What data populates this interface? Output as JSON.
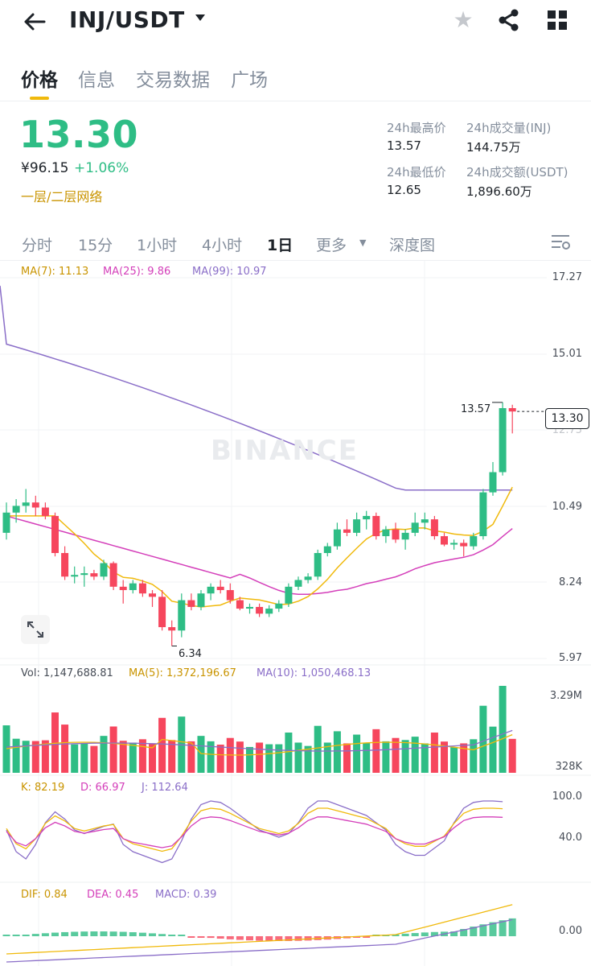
{
  "header": {
    "pair": "INJ/USDT",
    "icons": [
      "back-arrow-icon",
      "caret-down-icon",
      "star-icon",
      "share-icon",
      "grid-icon"
    ]
  },
  "tabs": [
    "价格",
    "信息",
    "交易数据",
    "广场"
  ],
  "ticker": {
    "last_price": "13.30",
    "cny_price": "¥96.15",
    "change": "+1.06%",
    "tag": "一层/二层网络",
    "stats": {
      "high_label": "24h最高价",
      "high": "13.57",
      "vol_base_label": "24h成交量(INJ)",
      "vol_base": "144.75万",
      "low_label": "24h最低价",
      "low": "12.65",
      "vol_quote_label": "24h成交额(USDT)",
      "vol_quote": "1,896.60万"
    }
  },
  "intervals": [
    "分时",
    "15分",
    "1小时",
    "4小时",
    "1日",
    "更多",
    "深度图"
  ],
  "active_interval": "1日",
  "colors": {
    "up": "#2ebd85",
    "down": "#f6465d",
    "accent": "#f0b90b",
    "ma7": "#f0b90b",
    "ma25": "#d43fba",
    "ma99": "#8a6ec8"
  },
  "chart_data": {
    "type": "candlestick",
    "price_axis": [
      "17.27",
      "15.01",
      "12.75",
      "10.49",
      "8.24",
      "5.97"
    ],
    "ma": {
      "ma7": "MA(7): 11.13",
      "ma25": "MA(25): 9.86",
      "ma99": "MA(99): 10.97"
    },
    "high_marker": "13.57",
    "low_marker": "6.34",
    "current_price": "13.30",
    "watermark": "BINANCE",
    "candles": [
      {
        "o": 9.7,
        "h": 10.6,
        "l": 9.5,
        "c": 10.3
      },
      {
        "o": 10.3,
        "h": 10.7,
        "l": 10.0,
        "c": 10.5
      },
      {
        "o": 10.5,
        "h": 11.0,
        "l": 10.3,
        "c": 10.6
      },
      {
        "o": 10.6,
        "h": 10.8,
        "l": 10.2,
        "c": 10.45
      },
      {
        "o": 10.45,
        "h": 10.6,
        "l": 10.1,
        "c": 10.2
      },
      {
        "o": 10.2,
        "h": 10.3,
        "l": 9.0,
        "c": 9.1
      },
      {
        "o": 9.1,
        "h": 9.3,
        "l": 8.3,
        "c": 8.4
      },
      {
        "o": 8.4,
        "h": 8.7,
        "l": 8.2,
        "c": 8.45
      },
      {
        "o": 8.45,
        "h": 8.7,
        "l": 8.1,
        "c": 8.5
      },
      {
        "o": 8.5,
        "h": 8.6,
        "l": 8.3,
        "c": 8.4
      },
      {
        "o": 8.4,
        "h": 8.9,
        "l": 8.3,
        "c": 8.8
      },
      {
        "o": 8.8,
        "h": 8.85,
        "l": 8.0,
        "c": 8.1
      },
      {
        "o": 8.1,
        "h": 8.3,
        "l": 7.6,
        "c": 8.0
      },
      {
        "o": 8.0,
        "h": 8.3,
        "l": 7.9,
        "c": 8.2
      },
      {
        "o": 8.2,
        "h": 8.3,
        "l": 7.8,
        "c": 7.9
      },
      {
        "o": 7.9,
        "h": 8.0,
        "l": 7.5,
        "c": 7.8
      },
      {
        "o": 7.8,
        "h": 8.0,
        "l": 6.8,
        "c": 6.9
      },
      {
        "o": 6.9,
        "h": 7.1,
        "l": 6.34,
        "c": 6.8
      },
      {
        "o": 6.8,
        "h": 7.9,
        "l": 6.6,
        "c": 7.7
      },
      {
        "o": 7.7,
        "h": 7.9,
        "l": 7.4,
        "c": 7.5
      },
      {
        "o": 7.5,
        "h": 8.0,
        "l": 7.4,
        "c": 7.9
      },
      {
        "o": 7.9,
        "h": 8.2,
        "l": 7.7,
        "c": 8.1
      },
      {
        "o": 8.1,
        "h": 8.3,
        "l": 7.9,
        "c": 8.0
      },
      {
        "o": 8.0,
        "h": 8.2,
        "l": 7.6,
        "c": 7.7
      },
      {
        "o": 7.7,
        "h": 7.8,
        "l": 7.4,
        "c": 7.45
      },
      {
        "o": 7.45,
        "h": 7.6,
        "l": 7.3,
        "c": 7.5
      },
      {
        "o": 7.5,
        "h": 7.6,
        "l": 7.2,
        "c": 7.3
      },
      {
        "o": 7.3,
        "h": 7.55,
        "l": 7.2,
        "c": 7.45
      },
      {
        "o": 7.45,
        "h": 7.7,
        "l": 7.35,
        "c": 7.6
      },
      {
        "o": 7.6,
        "h": 8.2,
        "l": 7.5,
        "c": 8.1
      },
      {
        "o": 8.1,
        "h": 8.4,
        "l": 8.0,
        "c": 8.3
      },
      {
        "o": 8.3,
        "h": 8.5,
        "l": 8.2,
        "c": 8.4
      },
      {
        "o": 8.4,
        "h": 9.2,
        "l": 8.3,
        "c": 9.1
      },
      {
        "o": 9.1,
        "h": 9.4,
        "l": 9.0,
        "c": 9.3
      },
      {
        "o": 9.3,
        "h": 10.0,
        "l": 9.2,
        "c": 9.8
      },
      {
        "o": 9.8,
        "h": 10.1,
        "l": 9.6,
        "c": 9.7
      },
      {
        "o": 9.7,
        "h": 10.3,
        "l": 9.6,
        "c": 10.1
      },
      {
        "o": 10.1,
        "h": 10.35,
        "l": 9.8,
        "c": 10.2
      },
      {
        "o": 10.2,
        "h": 10.3,
        "l": 9.5,
        "c": 9.6
      },
      {
        "o": 9.6,
        "h": 9.9,
        "l": 9.4,
        "c": 9.8
      },
      {
        "o": 9.8,
        "h": 10.0,
        "l": 9.4,
        "c": 9.5
      },
      {
        "o": 9.5,
        "h": 9.8,
        "l": 9.2,
        "c": 9.7
      },
      {
        "o": 9.7,
        "h": 10.3,
        "l": 9.6,
        "c": 10.0
      },
      {
        "o": 10.0,
        "h": 10.3,
        "l": 9.8,
        "c": 10.1
      },
      {
        "o": 10.1,
        "h": 10.2,
        "l": 9.5,
        "c": 9.6
      },
      {
        "o": 9.6,
        "h": 9.7,
        "l": 9.3,
        "c": 9.35
      },
      {
        "o": 9.35,
        "h": 9.5,
        "l": 9.2,
        "c": 9.4
      },
      {
        "o": 9.4,
        "h": 9.5,
        "l": 9.0,
        "c": 9.3
      },
      {
        "o": 9.3,
        "h": 9.7,
        "l": 9.2,
        "c": 9.6
      },
      {
        "o": 9.6,
        "h": 11.0,
        "l": 9.5,
        "c": 10.9
      },
      {
        "o": 10.9,
        "h": 11.8,
        "l": 10.8,
        "c": 11.5
      },
      {
        "o": 11.5,
        "h": 13.57,
        "l": 11.4,
        "c": 13.4
      },
      {
        "o": 13.4,
        "h": 13.5,
        "l": 12.65,
        "c": 13.3
      }
    ],
    "volume": {
      "legend": "Vol: 1,147,688.81",
      "ma5": "MA(5): 1,372,196.67",
      "ma10": "MA(10): 1,050,468.13",
      "axis": [
        "3.29M",
        "328K"
      ]
    },
    "kdj": {
      "k": "K: 82.19",
      "d": "D: 66.97",
      "j": "J: 112.64",
      "axis": [
        "100.0",
        "40.0"
      ]
    },
    "macd": {
      "dif": "DIF: 0.84",
      "dea": "DEA: 0.45",
      "macd": "MACD: 0.39",
      "axis": [
        "0.00"
      ]
    }
  }
}
